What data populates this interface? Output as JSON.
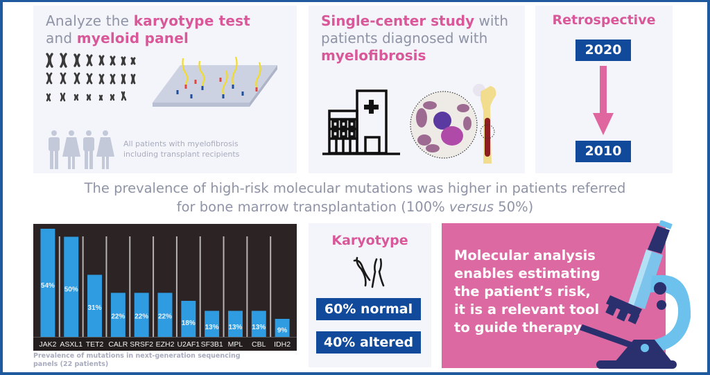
{
  "colors": {
    "frame": "#1f5a9e",
    "accent_pink": "#d9589a",
    "navy": "#124a9b",
    "bar": "#2f9be0",
    "panel_bg": "#f4f5fa",
    "pink_panel": "#dd69a3"
  },
  "panel_analyze": {
    "title_part1": "Analyze the ",
    "title_highlight1": "karyotype test",
    "title_part2": "and ",
    "title_highlight2": "myeloid panel",
    "caption_line1": "All patients with myelofibrosis",
    "caption_line2": "including transplant recipients",
    "icons": [
      "chromosomes-icon",
      "microarray-chip-icon",
      "people-icon"
    ]
  },
  "panel_study": {
    "title_highlight": "Single-center study",
    "title_part1": " with",
    "title_part2": "patients diagnosed with",
    "title_highlight2": "myelofibrosis",
    "icons": [
      "hospital-icon",
      "bone-marrow-cells-icon",
      "bone-icon"
    ]
  },
  "panel_retro": {
    "title": "Retrospective",
    "year_start": "2020",
    "year_end": "2010",
    "icons": [
      "arrow-down-icon"
    ]
  },
  "headline": {
    "line1": "The prevalence of high-risk molecular mutations was higher in patients referred",
    "line2_part1": "for bone marrow transplantation (100% ",
    "line2_italic": "versus",
    "line2_part2": " 50%)"
  },
  "chart_data": {
    "type": "bar",
    "title": "",
    "caption": "Prevalence of mutations in next-generation sequencing panels (22 patients)",
    "caption_line1": "Prevalence of mutations in next-generation sequencing",
    "caption_line2": "panels (22 patients)",
    "xlabel": "",
    "ylabel": "",
    "ylim": [
      0,
      54
    ],
    "grid": false,
    "categories": [
      "JAK2",
      "ASXL1",
      "TET2",
      "CALR",
      "SRSF2",
      "EZH2",
      "U2AF1",
      "SF3B1",
      "MPL",
      "CBL",
      "IDH2"
    ],
    "values": [
      54,
      50,
      31,
      22,
      22,
      22,
      18,
      13,
      13,
      13,
      9
    ],
    "value_labels": [
      "54%",
      "50%",
      "31%",
      "22%",
      "22%",
      "22%",
      "18%",
      "13%",
      "13%",
      "13%",
      "9%"
    ],
    "unit": "%"
  },
  "panel_karyotype": {
    "title": "Karyotype",
    "normal": "60% normal",
    "altered": "40% altered",
    "icons": [
      "chromosome-pair-icon"
    ]
  },
  "panel_conclusion": {
    "line1": "Molecular analysis",
    "line2": "enables estimating",
    "line3": "the patient’s risk,",
    "line4": "it is a relevant tool",
    "line5": "to guide therapy",
    "icons": [
      "microscope-icon"
    ]
  }
}
